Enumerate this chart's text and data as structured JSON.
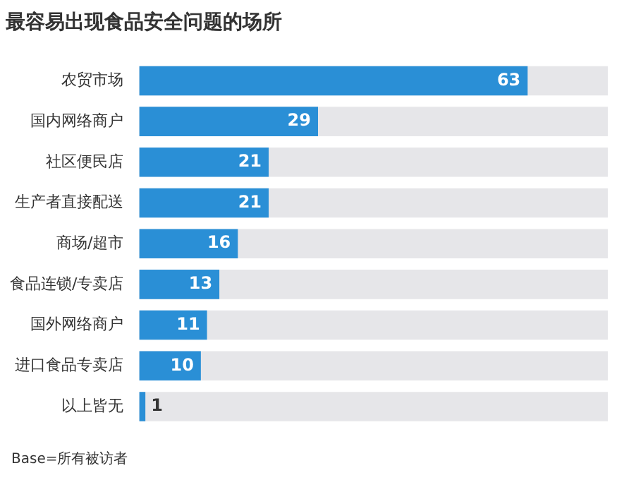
{
  "chart_data": {
    "type": "bar",
    "orientation": "horizontal",
    "title": "最容易出现食品安全问题的场所",
    "categories": [
      "农贸市场",
      "国内网络商户",
      "社区便民店",
      "生产者直接配送",
      "商场/超市",
      "食品连锁/专卖店",
      "国外网络商户",
      "进口食品专卖店",
      "以上皆无"
    ],
    "values": [
      63,
      29,
      21,
      21,
      16,
      13,
      11,
      10,
      1
    ],
    "color": "#2a8fd6",
    "xlim": [
      0,
      76
    ],
    "tick_labels": "y",
    "data_labels": true,
    "annotations": [
      "Base=所有被访者"
    ]
  }
}
